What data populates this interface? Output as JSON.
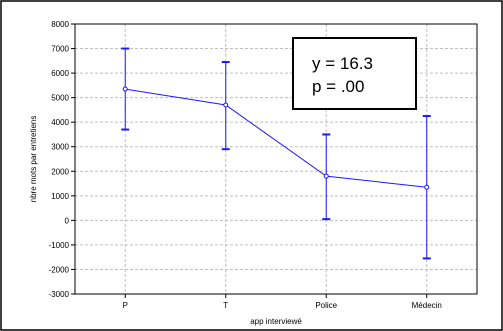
{
  "chart_data": {
    "type": "line",
    "categories": [
      "P",
      "T",
      "Police",
      "Médecin"
    ],
    "series": [
      {
        "values": [
          5350,
          4700,
          1800,
          1350
        ],
        "error_low": [
          3700,
          2900,
          50,
          -1550
        ],
        "error_high": [
          7000,
          6450,
          3500,
          4250
        ]
      }
    ],
    "xlabel": "app interviewé",
    "ylabel": "nbre mots par entretiens",
    "ylim": [
      -3000,
      8000
    ],
    "yticks": [
      "8000",
      "7000",
      "6000",
      "5000",
      "4000",
      "3000",
      "2000",
      "1000",
      "0",
      "-1000",
      "-2000",
      "-3000"
    ],
    "grid": true,
    "annotation": {
      "line1": "y = 16.3",
      "line2": "p = .00"
    },
    "colors": {
      "series": "#1a1aff",
      "grid": "#bfbfbf",
      "frame": "#000000"
    }
  }
}
